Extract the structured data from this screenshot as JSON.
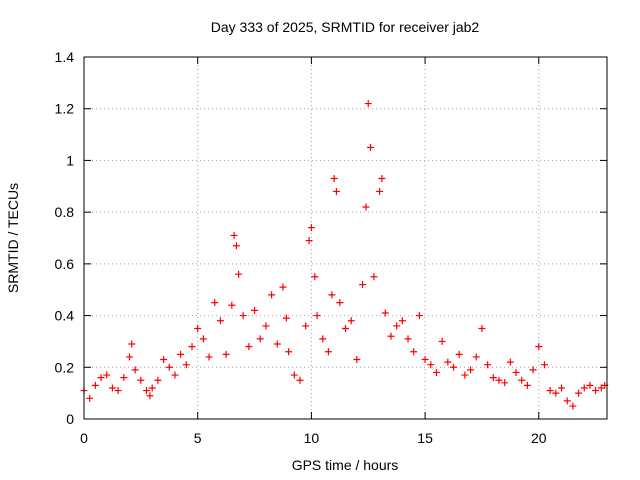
{
  "chart_data": {
    "type": "scatter",
    "title": "Day 333 of 2025, SRMTID for receiver jab2",
    "xlabel": "GPS time / hours",
    "ylabel": "SRMTID / TECUs",
    "xlim": [
      0,
      23
    ],
    "ylim": [
      0,
      1.4
    ],
    "x_ticks": [
      0,
      5,
      10,
      15,
      20
    ],
    "x_tick_labels": [
      "0",
      "5",
      "10",
      "15",
      "20"
    ],
    "y_ticks": [
      0,
      0.2,
      0.4,
      0.6,
      0.8,
      1.0,
      1.2,
      1.4
    ],
    "y_tick_labels": [
      "0",
      "0.2",
      "0.4",
      "0.6",
      "0.8",
      "1",
      "1.2",
      "1.4"
    ],
    "grid": true,
    "marker": "+",
    "series": [
      {
        "name": "SRMTID",
        "color": "#ff0000",
        "x": [
          0.0,
          0.25,
          0.5,
          0.75,
          1.0,
          1.25,
          1.5,
          1.75,
          2.0,
          2.1,
          2.25,
          2.5,
          2.75,
          2.9,
          3.0,
          3.25,
          3.5,
          3.75,
          4.0,
          4.25,
          4.5,
          4.75,
          5.0,
          5.25,
          5.5,
          5.75,
          6.0,
          6.25,
          6.5,
          6.6,
          6.7,
          6.8,
          7.0,
          7.25,
          7.5,
          7.75,
          8.0,
          8.25,
          8.5,
          8.75,
          8.9,
          9.0,
          9.25,
          9.5,
          9.75,
          9.9,
          10.0,
          10.15,
          10.25,
          10.5,
          10.75,
          10.9,
          11.0,
          11.1,
          11.25,
          11.5,
          11.75,
          12.0,
          12.25,
          12.4,
          12.5,
          12.6,
          12.75,
          13.0,
          13.1,
          13.25,
          13.5,
          13.75,
          14.0,
          14.25,
          14.5,
          14.75,
          15.0,
          15.25,
          15.5,
          15.75,
          16.0,
          16.25,
          16.5,
          16.75,
          17.0,
          17.25,
          17.5,
          17.75,
          18.0,
          18.25,
          18.5,
          18.75,
          19.0,
          19.25,
          19.5,
          19.75,
          20.0,
          20.25,
          20.5,
          20.75,
          21.0,
          21.25,
          21.5,
          21.75,
          22.0,
          22.25,
          22.5,
          22.75,
          22.9
        ],
        "y": [
          0.11,
          0.08,
          0.13,
          0.16,
          0.17,
          0.12,
          0.11,
          0.16,
          0.24,
          0.29,
          0.19,
          0.15,
          0.11,
          0.09,
          0.12,
          0.15,
          0.23,
          0.2,
          0.17,
          0.25,
          0.21,
          0.28,
          0.35,
          0.31,
          0.24,
          0.45,
          0.38,
          0.25,
          0.44,
          0.71,
          0.67,
          0.56,
          0.4,
          0.28,
          0.42,
          0.31,
          0.36,
          0.48,
          0.29,
          0.51,
          0.39,
          0.26,
          0.17,
          0.15,
          0.36,
          0.69,
          0.74,
          0.55,
          0.4,
          0.31,
          0.26,
          0.48,
          0.93,
          0.88,
          0.45,
          0.35,
          0.38,
          0.23,
          0.52,
          0.82,
          1.22,
          1.05,
          0.55,
          0.88,
          0.93,
          0.41,
          0.32,
          0.36,
          0.38,
          0.31,
          0.26,
          0.4,
          0.23,
          0.21,
          0.18,
          0.3,
          0.22,
          0.2,
          0.25,
          0.17,
          0.19,
          0.24,
          0.35,
          0.21,
          0.16,
          0.15,
          0.14,
          0.22,
          0.18,
          0.15,
          0.13,
          0.19,
          0.28,
          0.21,
          0.11,
          0.1,
          0.12,
          0.07,
          0.05,
          0.1,
          0.12,
          0.13,
          0.11,
          0.12,
          0.13
        ]
      }
    ]
  }
}
